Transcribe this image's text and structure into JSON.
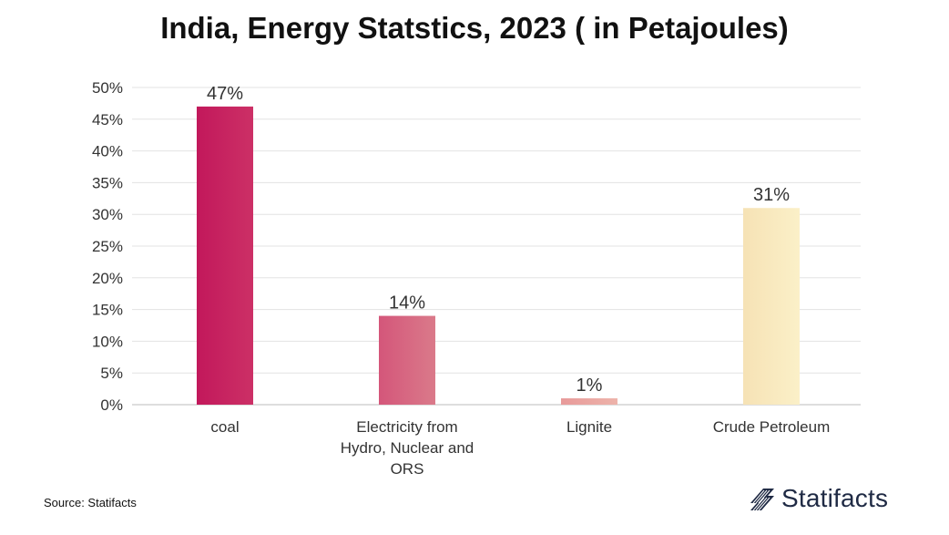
{
  "chart_data": {
    "type": "bar",
    "title": "India, Energy Statstics, 2023 ( in Petajoules)",
    "categories": [
      "coal",
      "Electricity from Hydro, Nuclear and ORS",
      "Lignite",
      "Crude Petroleum"
    ],
    "category_label_lines": [
      [
        "coal"
      ],
      [
        "Electricity from",
        "Hydro, Nuclear and",
        "ORS"
      ],
      [
        "Lignite"
      ],
      [
        "Crude Petroleum"
      ]
    ],
    "values": [
      47,
      14,
      1,
      31
    ],
    "data_labels": [
      "47%",
      "14%",
      "1%",
      "31%"
    ],
    "bar_colors": [
      [
        "#c2185b",
        "#cc3066"
      ],
      [
        "#d4567a",
        "#da7a8a"
      ],
      [
        "#e89a9a",
        "#edb3aa"
      ],
      [
        "#f6e2b5",
        "#fbf0c8"
      ]
    ],
    "ylim": [
      0,
      50
    ],
    "yticks": [
      0,
      5,
      10,
      15,
      20,
      25,
      30,
      35,
      40,
      45,
      50
    ],
    "ytick_labels": [
      "0%",
      "5%",
      "10%",
      "15%",
      "20%",
      "25%",
      "30%",
      "35%",
      "40%",
      "45%",
      "50%"
    ],
    "xlabel": "",
    "ylabel": "",
    "grid": true
  },
  "footer": {
    "source": "Source: Statifacts",
    "brand": "Statifacts"
  },
  "colors": {
    "grid": "#e3e3e3",
    "axis": "#bdbdbd",
    "text": "#333333",
    "brand": "#1f2a44"
  }
}
